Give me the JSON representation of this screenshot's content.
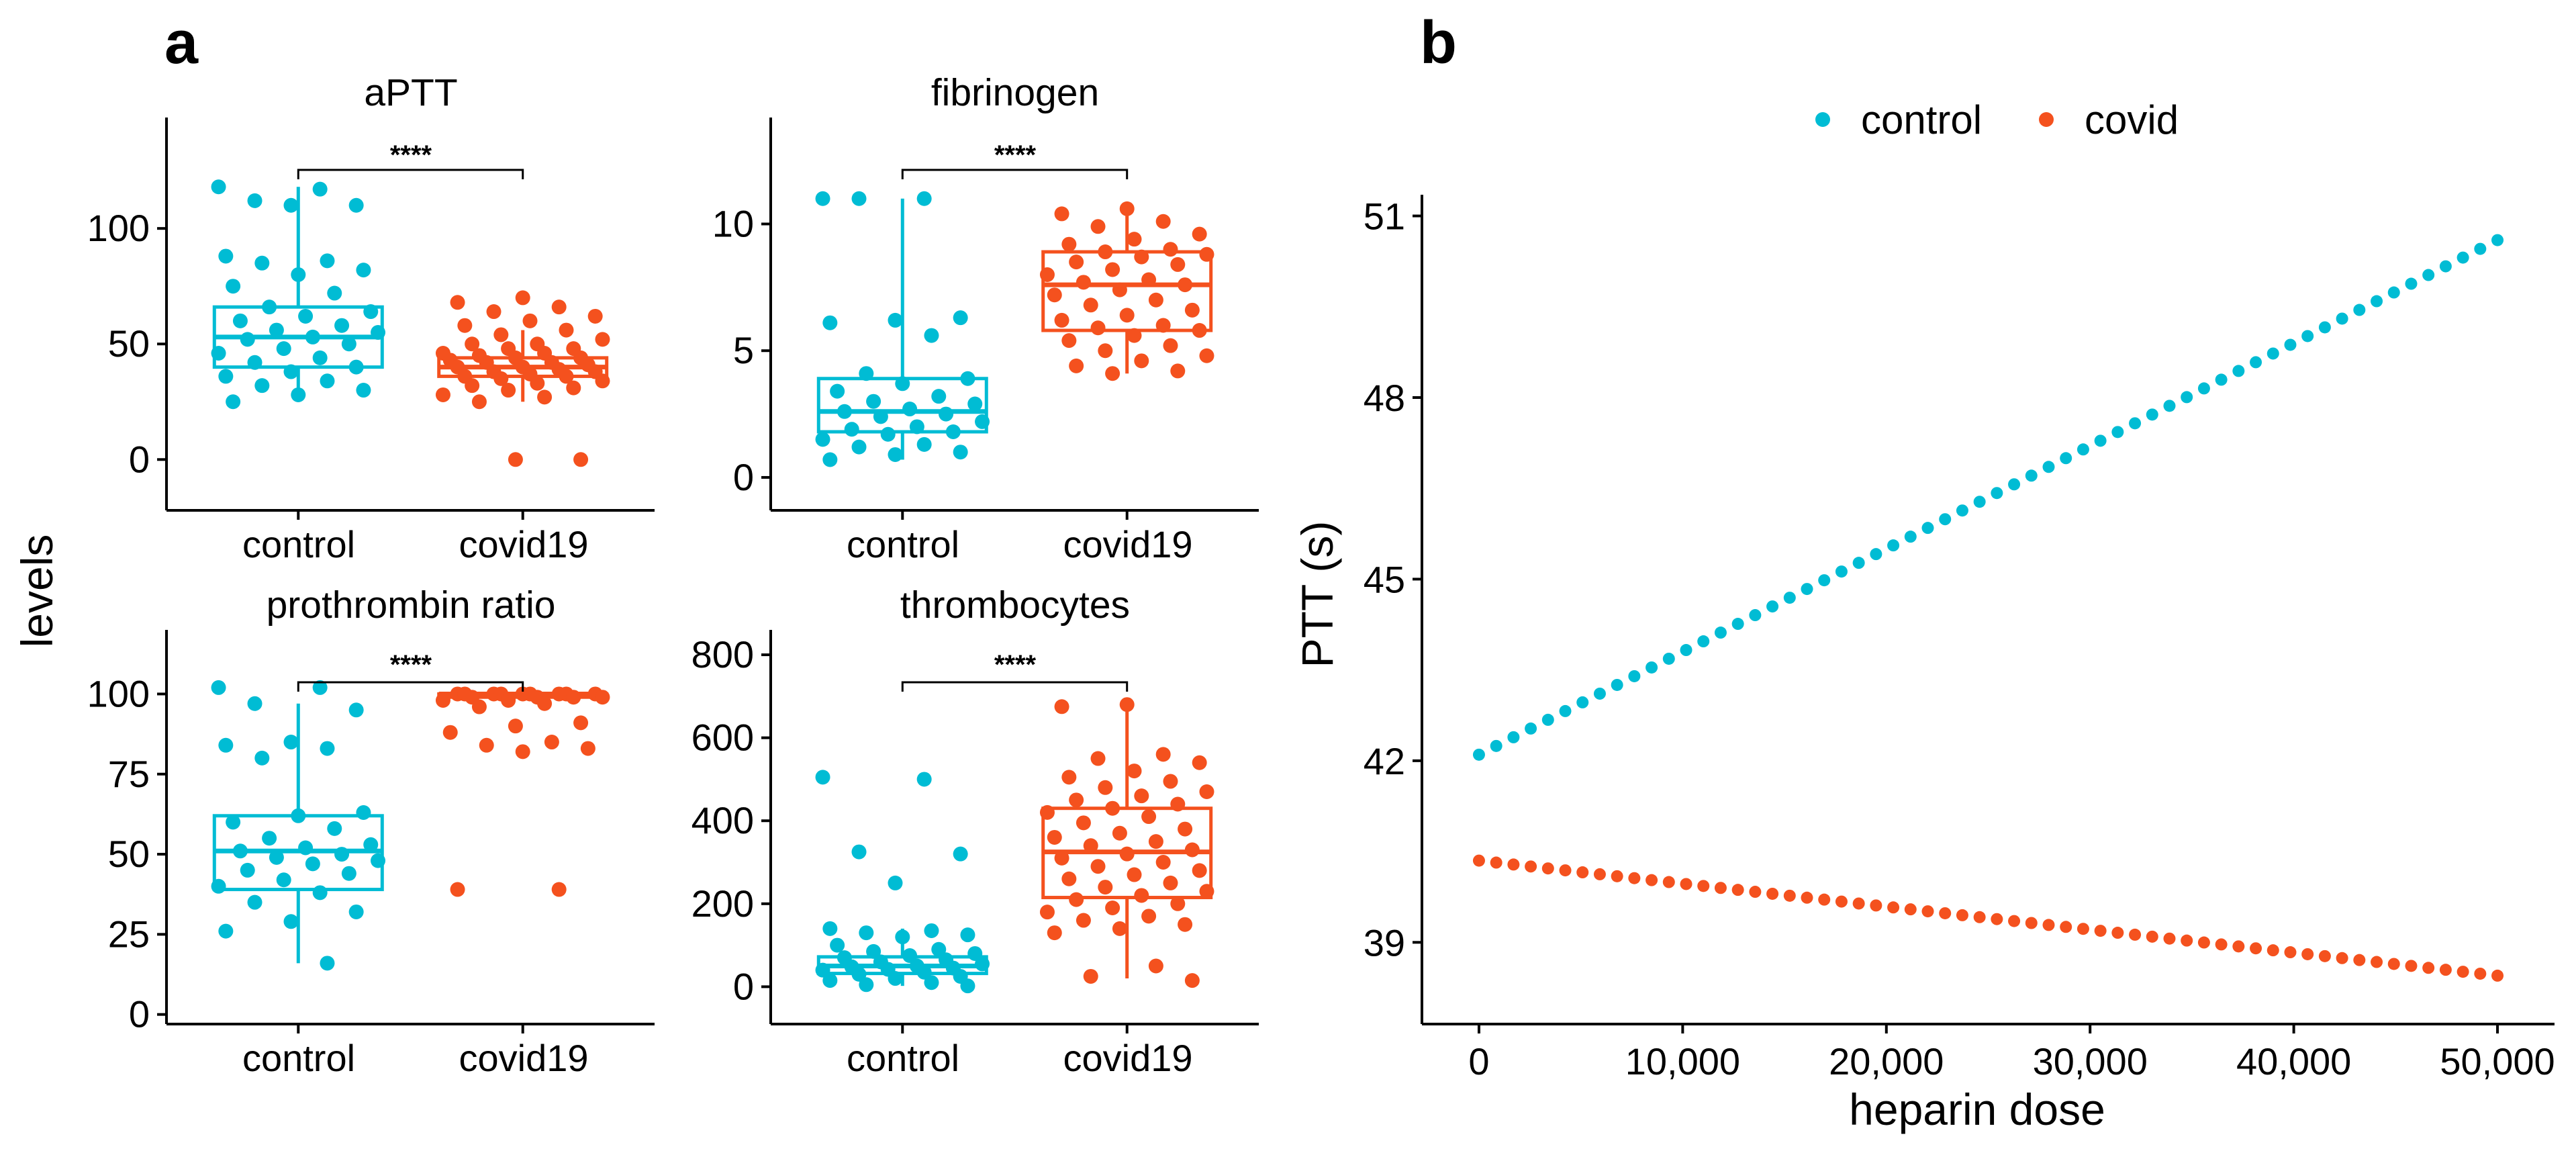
{
  "panel_labels": {
    "a": "a",
    "b": "b"
  },
  "shared_ylabel": "levels",
  "colors": {
    "control": "#00BCD4",
    "covid": "#F4511E"
  },
  "chart_data": [
    {
      "type": "box",
      "title": "aPTT",
      "categories": [
        "control",
        "covid19"
      ],
      "yticks": [
        "0",
        "50",
        "100"
      ],
      "ylim": [
        -22,
        148
      ],
      "significance": "****",
      "boxes": [
        {
          "group": "control",
          "q1": 40,
          "median": 53,
          "q3": 66,
          "whisker_low": 27,
          "whisker_high": 118,
          "points": [
            118,
            117,
            112,
            110,
            110,
            88,
            86,
            85,
            82,
            80,
            75,
            72,
            66,
            64,
            62,
            60,
            58,
            56,
            55,
            53,
            52,
            50,
            48,
            46,
            44,
            42,
            40,
            38,
            36,
            34,
            32,
            30,
            28,
            25
          ]
        },
        {
          "group": "covid19",
          "q1": 36,
          "median": 40,
          "q3": 44,
          "whisker_low": 25,
          "whisker_high": 56,
          "points": [
            70,
            68,
            66,
            64,
            62,
            60,
            58,
            56,
            54,
            52,
            50,
            50,
            48,
            48,
            46,
            46,
            45,
            44,
            44,
            43,
            42,
            42,
            41,
            40,
            40,
            39,
            38,
            38,
            37,
            36,
            36,
            35,
            34,
            33,
            32,
            31,
            30,
            28,
            27,
            25,
            0,
            0
          ]
        }
      ]
    },
    {
      "type": "box",
      "title": "fibrinogen",
      "categories": [
        "control",
        "covid19"
      ],
      "yticks": [
        "0",
        "5",
        "10"
      ],
      "ylim": [
        -1.3,
        14.2
      ],
      "significance": "****",
      "boxes": [
        {
          "group": "control",
          "q1": 1.8,
          "median": 2.6,
          "q3": 3.9,
          "whisker_low": 0.7,
          "whisker_high": 11,
          "points": [
            11,
            11,
            11,
            6.3,
            6.2,
            6.1,
            5.6,
            4.1,
            3.9,
            3.7,
            3.4,
            3.2,
            3.0,
            2.9,
            2.7,
            2.6,
            2.5,
            2.4,
            2.2,
            2.0,
            1.9,
            1.8,
            1.7,
            1.5,
            1.3,
            1.2,
            1.0,
            0.9,
            0.7
          ]
        },
        {
          "group": "covid19",
          "q1": 5.8,
          "median": 7.6,
          "q3": 8.9,
          "whisker_low": 4.1,
          "whisker_high": 10.6,
          "points": [
            10.6,
            10.4,
            10.1,
            9.9,
            9.6,
            9.4,
            9.2,
            9.0,
            8.9,
            8.8,
            8.7,
            8.5,
            8.4,
            8.2,
            8.0,
            7.8,
            7.7,
            7.6,
            7.4,
            7.2,
            7.0,
            6.8,
            6.6,
            6.4,
            6.2,
            6.0,
            5.9,
            5.8,
            5.6,
            5.4,
            5.2,
            5.0,
            4.8,
            4.6,
            4.4,
            4.2,
            4.1
          ]
        }
      ]
    },
    {
      "type": "box",
      "title": "prothrombin ratio",
      "categories": [
        "control",
        "covid19"
      ],
      "yticks": [
        "0",
        "25",
        "50",
        "75",
        "100"
      ],
      "ylim": [
        -3,
        120
      ],
      "significance": "****",
      "boxes": [
        {
          "group": "control",
          "q1": 39,
          "median": 51,
          "q3": 62,
          "whisker_low": 16,
          "whisker_high": 97,
          "points": [
            102,
            102,
            97,
            95,
            85,
            84,
            83,
            80,
            63,
            62,
            60,
            58,
            55,
            53,
            52,
            51,
            50,
            49,
            48,
            47,
            45,
            44,
            42,
            40,
            38,
            35,
            32,
            29,
            26,
            16
          ]
        },
        {
          "group": "covid19",
          "q1": 99,
          "median": 100,
          "q3": 100,
          "whisker_low": 98,
          "whisker_high": 100,
          "points": [
            100,
            100,
            100,
            100,
            100,
            100,
            100,
            100,
            100,
            99,
            99,
            99,
            99,
            98,
            98,
            97,
            96,
            91,
            90,
            88,
            85,
            84,
            83,
            82,
            39,
            39
          ]
        }
      ]
    },
    {
      "type": "box",
      "title": "thrombocytes",
      "categories": [
        "control",
        "covid19"
      ],
      "yticks": [
        "0",
        "200",
        "400",
        "600",
        "800"
      ],
      "ylim": [
        -90,
        860
      ],
      "significance": "****",
      "boxes": [
        {
          "group": "control",
          "q1": 32,
          "median": 50,
          "q3": 72,
          "whisker_low": 2,
          "whisker_high": 140,
          "points": [
            505,
            500,
            325,
            320,
            250,
            140,
            135,
            130,
            125,
            120,
            100,
            90,
            85,
            80,
            75,
            70,
            65,
            60,
            55,
            50,
            48,
            45,
            42,
            40,
            35,
            30,
            25,
            20,
            15,
            10,
            5,
            2
          ]
        },
        {
          "group": "covid19",
          "q1": 215,
          "median": 325,
          "q3": 430,
          "whisker_low": 20,
          "whisker_high": 680,
          "points": [
            680,
            675,
            560,
            550,
            540,
            520,
            505,
            495,
            480,
            470,
            460,
            450,
            440,
            430,
            420,
            410,
            395,
            380,
            370,
            360,
            350,
            340,
            330,
            320,
            310,
            300,
            290,
            280,
            270,
            260,
            250,
            240,
            230,
            220,
            210,
            200,
            190,
            180,
            170,
            160,
            150,
            140,
            130,
            50,
            25,
            15
          ]
        }
      ]
    },
    {
      "type": "scatter",
      "xlabel": "heparin dose",
      "ylabel": "PTT (s)",
      "xlim": [
        -2800,
        52800
      ],
      "ylim": [
        37.65,
        51.35
      ],
      "xticks": [
        0,
        10000,
        20000,
        30000,
        40000,
        50000
      ],
      "xtick_labels": [
        "0",
        "10,000",
        "20,000",
        "30,000",
        "40,000",
        "50,000"
      ],
      "yticks": [
        39,
        42,
        45,
        48,
        51
      ],
      "ytick_labels": [
        "39",
        "42",
        "45",
        "48",
        "51"
      ],
      "legend": {
        "position": "top",
        "entries": [
          "control",
          "covid"
        ]
      },
      "series": [
        {
          "name": "control",
          "x_start": 0,
          "x_end": 50000,
          "points": 60,
          "y_start": 42.1,
          "y_end": 50.6
        },
        {
          "name": "covid",
          "x_start": 0,
          "x_end": 50000,
          "points": 60,
          "y_start": 40.35,
          "y_end": 38.45
        }
      ]
    }
  ]
}
